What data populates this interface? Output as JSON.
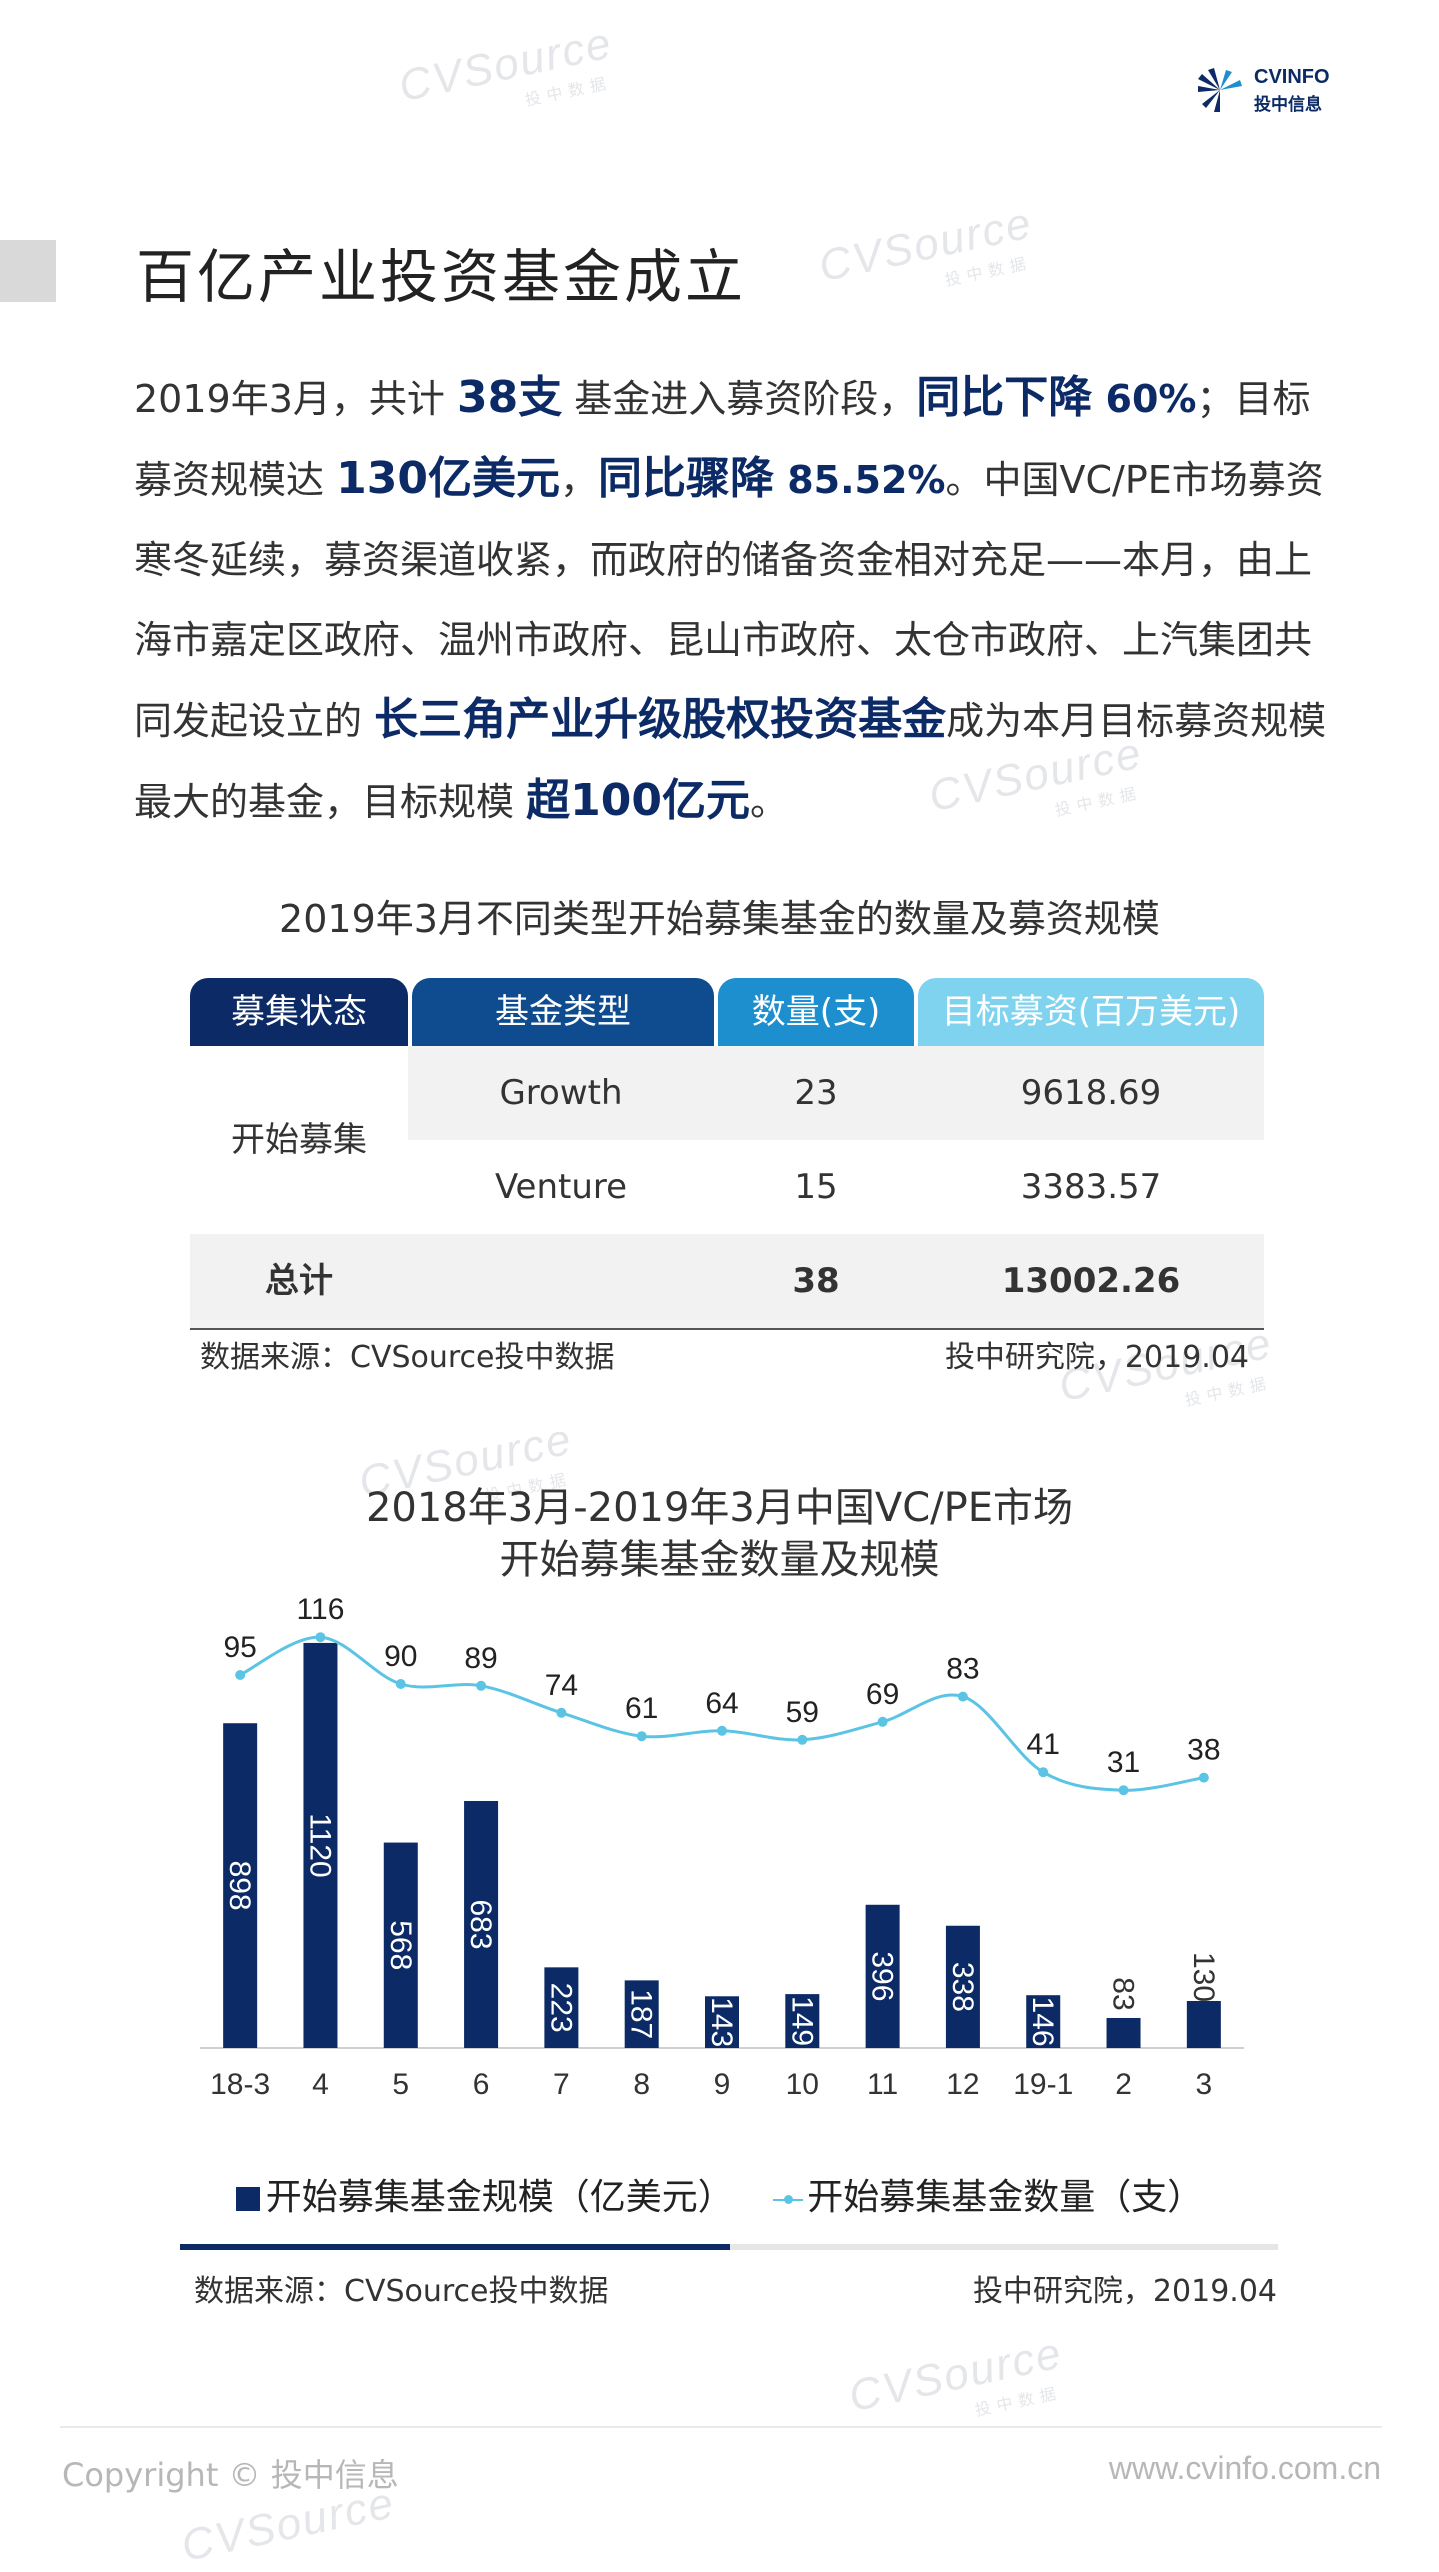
{
  "brand": {
    "name": "CVINFO",
    "sub": "投中信息",
    "watermark": "CVSource",
    "watermark_sub": "投中数据"
  },
  "page_title": "百亿产业投资基金成立",
  "paragraph": {
    "s1": "2019年3月，共计 ",
    "h1": "38支",
    "s2": " 基金进入募资阶段，",
    "h2": "同比下降",
    "h2b": " 60%",
    "s3": "；目标募资规模达 ",
    "h3": "130亿美元",
    "s4": "，",
    "h4": "同比骤降",
    "h4b": " 85.52%",
    "s5": "。中国VC/PE市场募资寒冬延续，募资渠道收紧，而政府的储备资金相对充足——本月，由上海市嘉定区政府、温州市政府、昆山市政府、太仓市政府、上汽集团共同发起设立的 ",
    "h5": "长三角产业升级股权投资基金",
    "s6": "成为本月目标募资规模最大的基金，目标规模 ",
    "h6": "超100亿元",
    "s7": "。"
  },
  "table": {
    "title": "2019年3月不同类型开始募集基金的数量及募资规模",
    "headers": [
      "募集状态",
      "基金类型",
      "数量(支)",
      "目标募资(百万美元)"
    ],
    "status_label": "开始募集",
    "rows": [
      {
        "type": "Growth",
        "count": "23",
        "target": "9618.69"
      },
      {
        "type": "Venture",
        "count": "15",
        "target": "3383.57"
      }
    ],
    "total": {
      "label": "总计",
      "count": "38",
      "target": "13002.26"
    },
    "source_left": "数据来源：CVSource投中数据",
    "source_right": "投中研究院，2019.04",
    "colors": {
      "h1": "#0b2a66",
      "h2": "#0f4c8f",
      "h3": "#1d8fcf",
      "h4": "#7fd3ee",
      "stripe": "#f2f2f2"
    }
  },
  "chart_title_1": "2018年3月-2019年3月中国VC/PE市场",
  "chart_title_2": "开始募集基金数量及规模",
  "chart_data": {
    "type": "bar",
    "categories": [
      "18-3",
      "4",
      "5",
      "6",
      "7",
      "8",
      "9",
      "10",
      "11",
      "12",
      "19-1",
      "2",
      "3"
    ],
    "series": [
      {
        "name": "开始募集基金规模（亿美元）",
        "type": "bar",
        "values": [
          898,
          1120,
          568,
          683,
          223,
          187,
          143,
          149,
          396,
          338,
          146,
          83,
          130
        ],
        "color": "#0b2a66"
      },
      {
        "name": "开始募集基金数量（支）",
        "type": "line",
        "values": [
          95,
          116,
          90,
          89,
          74,
          61,
          64,
          59,
          69,
          83,
          41,
          31,
          38
        ],
        "color": "#5bc4e5"
      }
    ],
    "legend": "bottom",
    "grid": false
  },
  "chart_source_left": "数据来源：CVSource投中数据",
  "chart_source_right": "投中研究院，2019.04",
  "footer": {
    "copyright": "Copyright © 投中信息",
    "website": "www.cvinfo.com.cn"
  }
}
